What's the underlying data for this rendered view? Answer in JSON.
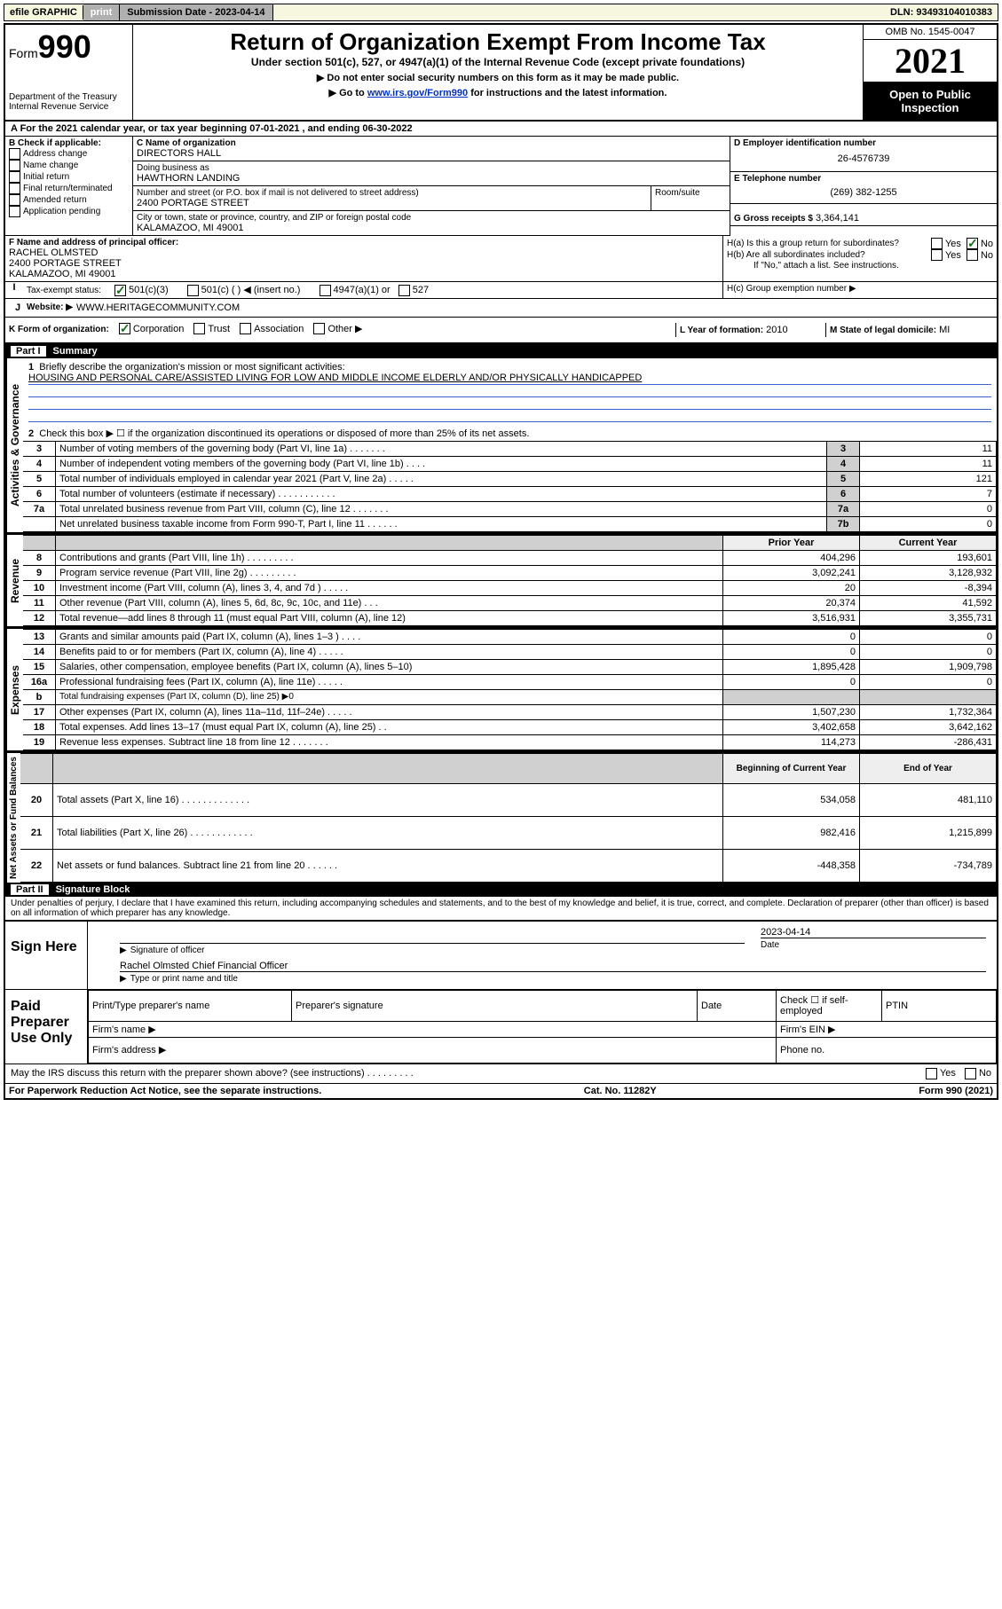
{
  "topbar": {
    "efile": "efile GRAPHIC",
    "print": "print",
    "subdate_label": "Submission Date - 2023-04-14",
    "dln": "DLN: 93493104010383"
  },
  "header": {
    "form_prefix": "Form",
    "form_number": "990",
    "dept": "Department of the Treasury",
    "irs": "Internal Revenue Service",
    "title": "Return of Organization Exempt From Income Tax",
    "subtitle": "Under section 501(c), 527, or 4947(a)(1) of the Internal Revenue Code (except private foundations)",
    "instr1": "▶ Do not enter social security numbers on this form as it may be made public.",
    "instr2_pre": "▶ Go to ",
    "instr2_link": "www.irs.gov/Form990",
    "instr2_post": " for instructions and the latest information.",
    "omb": "OMB No. 1545-0047",
    "year": "2021",
    "inspect": "Open to Public Inspection"
  },
  "sectionA": {
    "text_pre": "A For the 2021 calendar year, or tax year beginning ",
    "begin": "07-01-2021",
    "mid": " , and ending ",
    "end": "06-30-2022"
  },
  "colB": {
    "label": "B Check if applicable:",
    "opts": [
      "Address change",
      "Name change",
      "Initial return",
      "Final return/terminated",
      "Amended return",
      "Application pending"
    ]
  },
  "colC": {
    "name_label": "C Name of organization",
    "name": "DIRECTORS HALL",
    "dba_label": "Doing business as",
    "dba": "HAWTHORN LANDING",
    "street_label": "Number and street (or P.O. box if mail is not delivered to street address)",
    "room_label": "Room/suite",
    "street": "2400 PORTAGE STREET",
    "city_label": "City or town, state or province, country, and ZIP or foreign postal code",
    "city": "KALAMAZOO, MI  49001"
  },
  "colD": {
    "label": "D Employer identification number",
    "ein": "26-4576739",
    "elabel": "E Telephone number",
    "phone": "(269) 382-1255",
    "glabel": "G Gross receipts $",
    "gross": "3,364,141"
  },
  "secF": {
    "label": "F Name and address of principal officer:",
    "name": "RACHEL OLMSTED",
    "street": "2400 PORTAGE STREET",
    "city": "KALAMAZOO, MI  49001"
  },
  "secH": {
    "ha": "H(a)  Is this a group return for subordinates?",
    "hb": "H(b)  Are all subordinates included?",
    "hb_note": "If \"No,\" attach a list. See instructions.",
    "hc": "H(c)  Group exemption number ▶",
    "yes": "Yes",
    "no": "No"
  },
  "secI": {
    "label": "Tax-exempt status:",
    "o1": "501(c)(3)",
    "o2": "501(c) (   ) ◀ (insert no.)",
    "o3": "4947(a)(1) or",
    "o4": "527"
  },
  "secJ": {
    "label": "Website: ▶",
    "val": "WWW.HERITAGECOMMUNITY.COM"
  },
  "secK": {
    "label": "K Form of organization:",
    "opts": [
      "Corporation",
      "Trust",
      "Association",
      "Other ▶"
    ],
    "llabel": "L Year of formation:",
    "lval": "2010",
    "mlabel": "M State of legal domicile:",
    "mval": "MI"
  },
  "part1": {
    "num": "Part I",
    "title": "Summary",
    "side": "Activities & Governance"
  },
  "p1_lines": {
    "l1_label": "Briefly describe the organization's mission or most significant activities:",
    "l1_text": "HOUSING AND PERSONAL CARE/ASSISTED LIVING FOR LOW AND MIDDLE INCOME ELDERLY AND/OR PHYSICALLY HANDICAPPED",
    "l2": "Check this box ▶ ☐ if the organization discontinued its operations or disposed of more than 25% of its net assets.",
    "rows": [
      {
        "n": "3",
        "d": "Number of voting members of the governing body (Part VI, line 1a)   .    .    .    .    .    .    .",
        "box": "3",
        "v": "11"
      },
      {
        "n": "4",
        "d": "Number of independent voting members of the governing body (Part VI, line 1b)    .    .    .    .",
        "box": "4",
        "v": "11"
      },
      {
        "n": "5",
        "d": "Total number of individuals employed in calendar year 2021 (Part V, line 2a)   .    .    .    .    .",
        "box": "5",
        "v": "121"
      },
      {
        "n": "6",
        "d": "Total number of volunteers (estimate if necessary)   .    .    .    .    .    .    .    .    .    .    .",
        "box": "6",
        "v": "7"
      },
      {
        "n": "7a",
        "d": "Total unrelated business revenue from Part VIII, column (C), line 12   .    .    .    .    .    .    .",
        "box": "7a",
        "v": "0"
      },
      {
        "n": "",
        "d": "Net unrelated business taxable income from Form 990-T, Part I, line 11   .    .    .    .    .    .",
        "box": "7b",
        "v": "0"
      }
    ]
  },
  "revenue": {
    "side": "Revenue",
    "head_prior": "Prior Year",
    "head_curr": "Current Year",
    "rows": [
      {
        "n": "8",
        "d": "Contributions and grants (Part VIII, line 1h)   .    .    .    .    .    .    .    .    .",
        "p": "404,296",
        "c": "193,601"
      },
      {
        "n": "9",
        "d": "Program service revenue (Part VIII, line 2g)   .    .    .    .    .    .    .    .    .",
        "p": "3,092,241",
        "c": "3,128,932"
      },
      {
        "n": "10",
        "d": "Investment income (Part VIII, column (A), lines 3, 4, and 7d )   .    .    .    .    .",
        "p": "20",
        "c": "-8,394"
      },
      {
        "n": "11",
        "d": "Other revenue (Part VIII, column (A), lines 5, 6d, 8c, 9c, 10c, and 11e)    .    .    .",
        "p": "20,374",
        "c": "41,592"
      },
      {
        "n": "12",
        "d": "Total revenue—add lines 8 through 11 (must equal Part VIII, column (A), line 12)",
        "p": "3,516,931",
        "c": "3,355,731"
      }
    ]
  },
  "expenses": {
    "side": "Expenses",
    "rows": [
      {
        "n": "13",
        "d": "Grants and similar amounts paid (Part IX, column (A), lines 1–3 )   .    .    .    .",
        "p": "0",
        "c": "0"
      },
      {
        "n": "14",
        "d": "Benefits paid to or for members (Part IX, column (A), line 4)   .    .    .    .    .",
        "p": "0",
        "c": "0"
      },
      {
        "n": "15",
        "d": "Salaries, other compensation, employee benefits (Part IX, column (A), lines 5–10)",
        "p": "1,895,428",
        "c": "1,909,798"
      },
      {
        "n": "16a",
        "d": "Professional fundraising fees (Part IX, column (A), line 11e)   .    .    .    .    .",
        "p": "0",
        "c": "0"
      },
      {
        "n": "b",
        "d": "Total fundraising expenses (Part IX, column (D), line 25) ▶0",
        "p": "",
        "c": "",
        "shade": true,
        "small": true
      },
      {
        "n": "17",
        "d": "Other expenses (Part IX, column (A), lines 11a–11d, 11f–24e)   .    .    .    .    .",
        "p": "1,507,230",
        "c": "1,732,364"
      },
      {
        "n": "18",
        "d": "Total expenses. Add lines 13–17 (must equal Part IX, column (A), line 25)    .    .",
        "p": "3,402,658",
        "c": "3,642,162"
      },
      {
        "n": "19",
        "d": "Revenue less expenses. Subtract line 18 from line 12   .    .    .    .    .    .    .",
        "p": "114,273",
        "c": "-286,431"
      }
    ]
  },
  "netassets": {
    "side": "Net Assets or Fund Balances",
    "head_begin": "Beginning of Current Year",
    "head_end": "End of Year",
    "rows": [
      {
        "n": "20",
        "d": "Total assets (Part X, line 16)   .    .    .    .    .    .    .    .    .    .    .    .    .",
        "p": "534,058",
        "c": "481,110"
      },
      {
        "n": "21",
        "d": "Total liabilities (Part X, line 26)   .    .    .    .    .    .    .    .    .    .    .    .",
        "p": "982,416",
        "c": "1,215,899"
      },
      {
        "n": "22",
        "d": "Net assets or fund balances. Subtract line 21 from line 20   .    .    .    .    .    .",
        "p": "-448,358",
        "c": "-734,789"
      }
    ]
  },
  "part2": {
    "num": "Part II",
    "title": "Signature Block"
  },
  "penalties": "Under penalties of perjury, I declare that I have examined this return, including accompanying schedules and statements, and to the best of my knowledge and belief, it is true, correct, and complete. Declaration of preparer (other than officer) is based on all information of which preparer has any knowledge.",
  "sign": {
    "here": "Sign Here",
    "sig_label": "Signature of officer",
    "date_label": "Date",
    "date": "2023-04-14",
    "name": "Rachel Olmsted  Chief Financial Officer",
    "name_label": "Type or print name and title"
  },
  "paid": {
    "label": "Paid Preparer Use Only",
    "h1": "Print/Type preparer's name",
    "h2": "Preparer's signature",
    "h3": "Date",
    "h4": "Check ☐ if self-employed",
    "h5": "PTIN",
    "firm_name": "Firm's name  ▶",
    "firm_ein": "Firm's EIN ▶",
    "firm_addr": "Firm's address ▶",
    "phone": "Phone no."
  },
  "discuss": {
    "text": "May the IRS discuss this return with the preparer shown above? (see instructions)   .    .    .    .    .    .    .    .    .",
    "yes": "Yes",
    "no": "No"
  },
  "footer": {
    "left": "For Paperwork Reduction Act Notice, see the separate instructions.",
    "mid": "Cat. No. 11282Y",
    "right": "Form 990 (2021)"
  }
}
